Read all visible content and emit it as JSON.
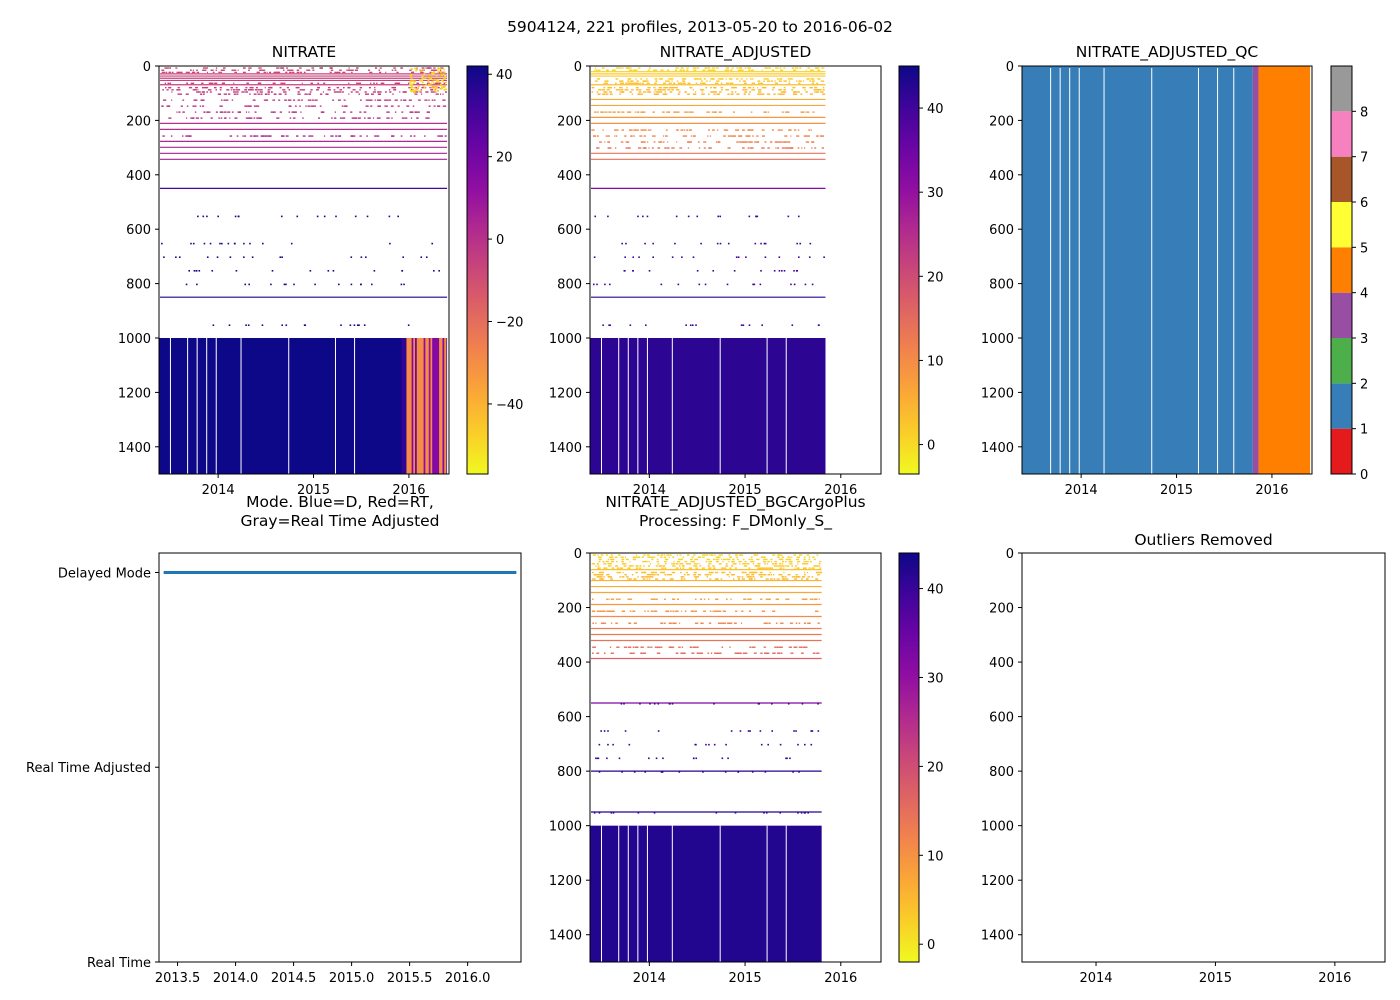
{
  "figure": {
    "suptitle": "5904124, 221 profiles, 2013-05-20 to 2016-06-02"
  },
  "chart_data": [
    {
      "id": "nitrate",
      "type": "heatmap",
      "title": "NITRATE",
      "x_ticks": [
        "2014",
        "2015",
        "2016"
      ],
      "x_tick_values": [
        2014,
        2015,
        2016
      ],
      "xlim": [
        2013.38,
        2016.42
      ],
      "y_ticks": [
        "0",
        "200",
        "400",
        "600",
        "800",
        "1000",
        "1200",
        "1400"
      ],
      "ylim": [
        1500,
        0
      ],
      "colormap": "plasma_r",
      "colorbar": {
        "ticks": [
          "40",
          "20",
          "0",
          "−20",
          "−40"
        ],
        "tick_values": [
          40,
          20,
          0,
          -20,
          -40
        ],
        "range": [
          -57,
          42
        ]
      },
      "data_end": 2016.4,
      "features": {
        "upper_dense_to": 350,
        "lines": [
          450,
          850
        ],
        "deep_from": 1000,
        "deep_value": 42
      }
    },
    {
      "id": "nitrate-adjusted",
      "type": "heatmap",
      "title": "NITRATE_ADJUSTED",
      "x_ticks": [
        "2014",
        "2015",
        "2016"
      ],
      "x_tick_values": [
        2014,
        2015,
        2016
      ],
      "xlim": [
        2013.38,
        2016.42
      ],
      "y_ticks": [
        "0",
        "200",
        "400",
        "600",
        "800",
        "1000",
        "1200",
        "1400"
      ],
      "ylim": [
        1500,
        0
      ],
      "colormap": "plasma_r",
      "colorbar": {
        "ticks": [
          "40",
          "30",
          "20",
          "10",
          "0"
        ],
        "tick_values": [
          40,
          30,
          20,
          10,
          0
        ],
        "range": [
          -3.5,
          45
        ]
      },
      "data_end": 2015.84,
      "features": {
        "upper_dense_to": 350,
        "lines": [
          450,
          850
        ],
        "deep_from": 1000,
        "deep_value": 42
      }
    },
    {
      "id": "nitrate-adjusted-qc",
      "type": "heatmap",
      "title": "NITRATE_ADJUSTED_QC",
      "x_ticks": [
        "2014",
        "2015",
        "2016"
      ],
      "x_tick_values": [
        2014,
        2015,
        2016
      ],
      "xlim": [
        2013.38,
        2016.42
      ],
      "y_ticks": [
        "0",
        "200",
        "400",
        "600",
        "800",
        "1000",
        "1200",
        "1400"
      ],
      "ylim": [
        1500,
        0
      ],
      "qc_colors": [
        "#e41a1c",
        "#377eb8",
        "#4daf4a",
        "#984ea3",
        "#ff7f00",
        "#ffff33",
        "#a65628",
        "#f781bf",
        "#999999"
      ],
      "colorbar": {
        "ticks": [
          "0",
          "1",
          "2",
          "3",
          "4",
          "5",
          "6",
          "7",
          "8"
        ],
        "tick_values": [
          0,
          1,
          2,
          3,
          4,
          5,
          6,
          7,
          8
        ],
        "range": [
          0,
          9
        ]
      },
      "segments": [
        {
          "from": 2013.38,
          "to": 2015.8,
          "qc": 1
        },
        {
          "from": 2015.8,
          "to": 2015.86,
          "qc": 3
        },
        {
          "from": 2015.86,
          "to": 2016.4,
          "qc": 4
        }
      ]
    },
    {
      "id": "mode",
      "type": "line",
      "title_lines": [
        "Mode. Blue=D, Red=RT,",
        "Gray=Real Time Adjusted"
      ],
      "x_ticks": [
        "2013.5",
        "2014.0",
        "2014.5",
        "2015.0",
        "2015.5",
        "2016.0"
      ],
      "x_tick_values": [
        2013.5,
        2014.0,
        2014.5,
        2015.0,
        2015.5,
        2016.0
      ],
      "xlim": [
        2013.34,
        2016.46
      ],
      "y_ticks": [
        "Delayed Mode",
        "Real Time Adjusted",
        "Real Time"
      ],
      "y_tick_values": [
        2,
        1,
        0
      ],
      "ylim": [
        0,
        2.1
      ],
      "series": [
        {
          "name": "Delayed Mode",
          "color": "#1f77b4",
          "x": [
            2013.38,
            2016.42
          ],
          "y": [
            2,
            2
          ]
        }
      ]
    },
    {
      "id": "bgcargoplus",
      "type": "heatmap",
      "title_lines": [
        "NITRATE_ADJUSTED_BGCArgoPlus",
        "Processing: F_DMonly_S_"
      ],
      "x_ticks": [
        "2014",
        "2015",
        "2016"
      ],
      "x_tick_values": [
        2014,
        2015,
        2016
      ],
      "xlim": [
        2013.38,
        2016.42
      ],
      "y_ticks": [
        "0",
        "200",
        "400",
        "600",
        "800",
        "1000",
        "1200",
        "1400"
      ],
      "ylim": [
        1500,
        0
      ],
      "colormap": "plasma_r",
      "colorbar": {
        "ticks": [
          "40",
          "30",
          "20",
          "10",
          "0"
        ],
        "tick_values": [
          40,
          30,
          20,
          10,
          0
        ],
        "range": [
          -2,
          44
        ]
      },
      "data_end": 2015.8,
      "features": {
        "upper_dense_to": 400,
        "lines": [
          550,
          800,
          950
        ],
        "deep_from": 1000,
        "deep_value": 42
      }
    },
    {
      "id": "outliers",
      "type": "scatter",
      "title": "Outliers Removed",
      "x_ticks": [
        "2014",
        "2015",
        "2016"
      ],
      "x_tick_values": [
        2014,
        2015,
        2016
      ],
      "xlim": [
        2013.38,
        2016.42
      ],
      "y_ticks": [
        "0",
        "200",
        "400",
        "600",
        "800",
        "1000",
        "1200",
        "1400"
      ],
      "ylim": [
        1500,
        0
      ],
      "points": []
    }
  ]
}
